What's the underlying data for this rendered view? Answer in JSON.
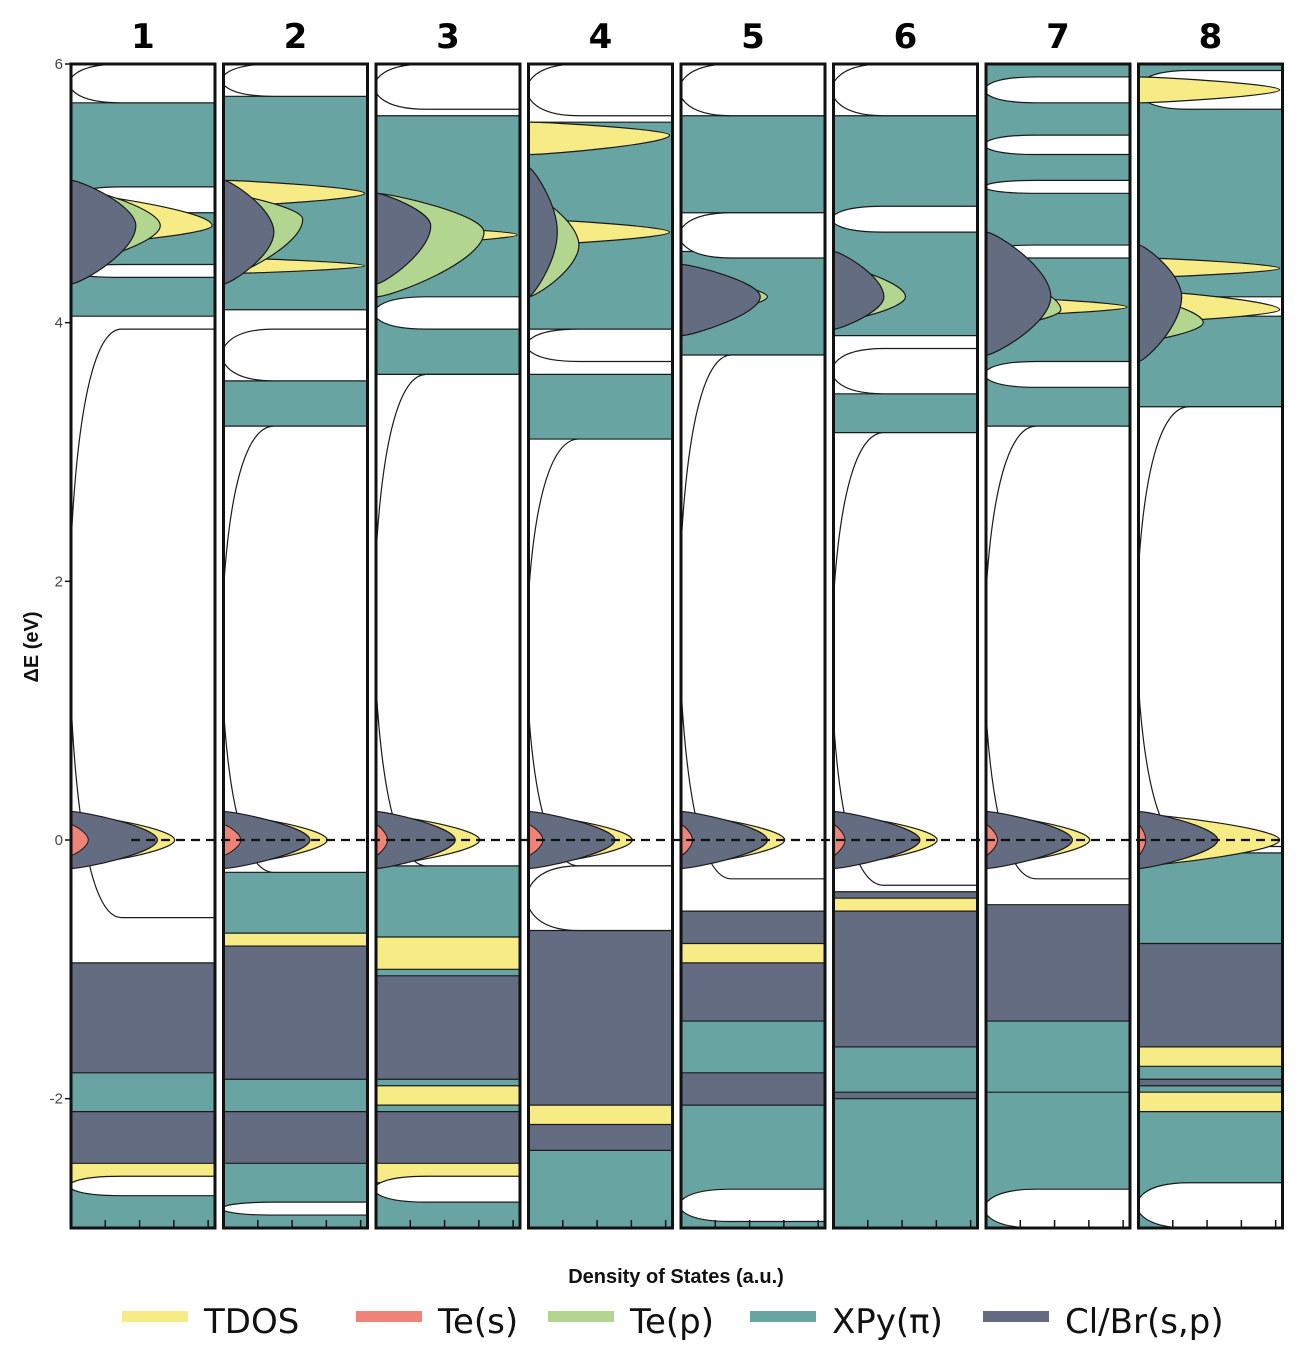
{
  "colors": {
    "tdos": "#f7eb85",
    "te_s": "#ef8377",
    "te_p": "#b2d690",
    "xpy_pi": "#68a4a2",
    "clbr_sp": "#636c80",
    "frame": "#111111"
  },
  "chart_data": {
    "type": "area",
    "xlabel": "Density of States (a.u.)",
    "ylabel": "ΔE (eV)",
    "ylim": [
      -3.0,
      6.0
    ],
    "yticks": [
      -2,
      0,
      2,
      4,
      6
    ],
    "ytick_labels": [
      "-2",
      "0",
      "2",
      "4",
      "6"
    ],
    "reference_line_y": 0,
    "legend": [
      {
        "label": "TDOS",
        "color_key": "tdos"
      },
      {
        "label": "Te(s)",
        "color_key": "te_s"
      },
      {
        "label": "Te(p)",
        "color_key": "te_p"
      },
      {
        "label": "XPy(π)",
        "color_key": "xpy_pi"
      },
      {
        "label": "Cl/Br(s,p)",
        "color_key": "clbr_sp"
      }
    ],
    "panels": [
      {
        "label": "1",
        "homo_peak": {
          "y": 0,
          "te_s_width": 0.12,
          "clbr_width": 0.6,
          "tdos_width": 0.72
        },
        "bands": [
          {
            "component": "xpy_pi",
            "y0": 4.05,
            "y1": 5.7
          },
          {
            "component": "clbr_sp",
            "y0": 4.3,
            "y1": 5.1,
            "peak": 4.75,
            "width": 0.45
          },
          {
            "component": "te_p",
            "y0": 4.45,
            "y1": 5.05,
            "peak": 4.75,
            "width": 0.62
          },
          {
            "component": "tdos",
            "y0": 4.6,
            "y1": 5.0,
            "peak": 4.75,
            "width": 0.98
          },
          {
            "component": "clbr_sp",
            "y0": -3.0,
            "y1": -0.95
          },
          {
            "component": "xpy_pi",
            "y0": -3.0,
            "y1": -2.6
          },
          {
            "component": "xpy_pi",
            "y0": -2.1,
            "y1": -1.8
          },
          {
            "component": "tdos",
            "y0": -2.65,
            "y1": -2.5
          }
        ],
        "gaps": [
          {
            "y0": 5.7,
            "y1": 6.0
          },
          {
            "y0": 4.85,
            "y1": 5.05
          },
          {
            "y0": 4.35,
            "y1": 4.45
          },
          {
            "y0": -0.6,
            "y1": 3.95
          },
          {
            "y0": -2.75,
            "y1": -2.6
          }
        ]
      },
      {
        "label": "2",
        "homo_peak": {
          "y": 0,
          "te_s_width": 0.12,
          "clbr_width": 0.6,
          "tdos_width": 0.72
        },
        "bands": [
          {
            "component": "xpy_pi",
            "y0": 4.1,
            "y1": 5.75
          },
          {
            "component": "xpy_pi",
            "y0": 3.2,
            "y1": 3.55
          },
          {
            "component": "clbr_sp",
            "y0": 4.3,
            "y1": 5.1,
            "peak": 4.7,
            "width": 0.35
          },
          {
            "component": "te_p",
            "y0": 4.35,
            "y1": 5.0,
            "peak": 4.8,
            "width": 0.55
          },
          {
            "component": "tdos",
            "y0": 4.9,
            "y1": 5.1,
            "peak": 5.0,
            "width": 0.98
          },
          {
            "component": "tdos",
            "y0": 4.38,
            "y1": 4.5,
            "peak": 4.44,
            "width": 0.98
          },
          {
            "component": "xpy_pi",
            "y0": -0.85,
            "y1": -0.25
          },
          {
            "component": "clbr_sp",
            "y0": -3.0,
            "y1": -0.8
          },
          {
            "component": "xpy_pi",
            "y0": -3.0,
            "y1": -2.5
          },
          {
            "component": "xpy_pi",
            "y0": -2.1,
            "y1": -1.85
          },
          {
            "component": "tdos",
            "y0": -0.82,
            "y1": -0.72
          }
        ],
        "gaps": [
          {
            "y0": 5.75,
            "y1": 6.0
          },
          {
            "y0": 3.55,
            "y1": 3.95
          },
          {
            "y0": -0.25,
            "y1": 3.2
          },
          {
            "y0": -2.9,
            "y1": -2.8
          }
        ]
      },
      {
        "label": "3",
        "homo_peak": {
          "y": 0,
          "te_s_width": 0.08,
          "clbr_width": 0.55,
          "tdos_width": 0.72
        },
        "bands": [
          {
            "component": "xpy_pi",
            "y0": 3.6,
            "y1": 5.6
          },
          {
            "component": "clbr_sp",
            "y0": 4.3,
            "y1": 5.0,
            "peak": 4.75,
            "width": 0.38
          },
          {
            "component": "te_p",
            "y0": 4.2,
            "y1": 5.0,
            "peak": 4.7,
            "width": 0.75
          },
          {
            "component": "tdos",
            "y0": 4.6,
            "y1": 4.75,
            "peak": 4.68,
            "width": 0.98
          },
          {
            "component": "xpy_pi",
            "y0": -1.1,
            "y1": -0.2
          },
          {
            "component": "clbr_sp",
            "y0": -3.0,
            "y1": -1.05
          },
          {
            "component": "xpy_pi",
            "y0": -3.0,
            "y1": -2.6
          },
          {
            "component": "xpy_pi",
            "y0": -2.1,
            "y1": -1.85
          },
          {
            "component": "tdos",
            "y0": -1.0,
            "y1": -0.75
          },
          {
            "component": "tdos",
            "y0": -2.05,
            "y1": -1.9
          },
          {
            "component": "tdos",
            "y0": -2.65,
            "y1": -2.5
          }
        ],
        "gaps": [
          {
            "y0": 5.65,
            "y1": 6.0
          },
          {
            "y0": 3.95,
            "y1": 4.2
          },
          {
            "y0": -0.2,
            "y1": 3.6
          },
          {
            "y0": -2.8,
            "y1": -2.6
          }
        ]
      },
      {
        "label": "4",
        "homo_peak": {
          "y": 0,
          "te_s_width": 0.1,
          "clbr_width": 0.6,
          "tdos_width": 0.72
        },
        "bands": [
          {
            "component": "xpy_pi",
            "y0": 3.1,
            "y1": 3.6
          },
          {
            "component": "xpy_pi",
            "y0": 3.95,
            "y1": 5.55
          },
          {
            "component": "clbr_sp",
            "y0": 4.2,
            "y1": 5.2,
            "peak": 4.7,
            "width": 0.2
          },
          {
            "component": "te_p",
            "y0": 4.2,
            "y1": 5.0,
            "peak": 4.6,
            "width": 0.35
          },
          {
            "component": "tdos",
            "y0": 4.6,
            "y1": 4.8,
            "peak": 4.7,
            "width": 0.98
          },
          {
            "component": "tdos",
            "y0": 5.3,
            "y1": 5.55,
            "peak": 5.45,
            "width": 0.98
          },
          {
            "component": "xpy_pi",
            "y0": -1.05,
            "y1": -0.75
          },
          {
            "component": "clbr_sp",
            "y0": -3.0,
            "y1": -0.7
          },
          {
            "component": "xpy_pi",
            "y0": -3.0,
            "y1": -2.4
          },
          {
            "component": "tdos",
            "y0": -2.2,
            "y1": -2.05
          }
        ],
        "gaps": [
          {
            "y0": 5.6,
            "y1": 6.0
          },
          {
            "y0": 3.7,
            "y1": 3.95
          },
          {
            "y0": -0.2,
            "y1": 3.1
          },
          {
            "y0": -0.7,
            "y1": -0.2
          }
        ]
      },
      {
        "label": "5",
        "homo_peak": {
          "y": 0,
          "te_s_width": 0.08,
          "clbr_width": 0.6,
          "tdos_width": 0.72
        },
        "bands": [
          {
            "component": "xpy_pi",
            "y0": 3.75,
            "y1": 4.55
          },
          {
            "component": "xpy_pi",
            "y0": 4.85,
            "y1": 5.6
          },
          {
            "component": "clbr_sp",
            "y0": 3.9,
            "y1": 4.45,
            "peak": 4.2,
            "width": 0.55
          },
          {
            "component": "te_p",
            "y0": 4.05,
            "y1": 4.35,
            "peak": 4.2,
            "width": 0.6
          },
          {
            "component": "clbr_sp",
            "y0": -3.0,
            "y1": -0.55
          },
          {
            "component": "xpy_pi",
            "y0": -3.0,
            "y1": -2.05
          },
          {
            "component": "xpy_pi",
            "y0": -1.8,
            "y1": -1.4
          },
          {
            "component": "tdos",
            "y0": -0.95,
            "y1": -0.8
          }
        ],
        "gaps": [
          {
            "y0": 5.6,
            "y1": 6.0
          },
          {
            "y0": 4.5,
            "y1": 4.85
          },
          {
            "y0": -0.3,
            "y1": 3.75
          },
          {
            "y0": -2.95,
            "y1": -2.7
          }
        ]
      },
      {
        "label": "6",
        "homo_peak": {
          "y": 0,
          "te_s_width": 0.08,
          "clbr_width": 0.6,
          "tdos_width": 0.72
        },
        "bands": [
          {
            "component": "xpy_pi",
            "y0": 3.9,
            "y1": 5.6
          },
          {
            "component": "xpy_pi",
            "y0": 3.15,
            "y1": 3.45
          },
          {
            "component": "clbr_sp",
            "y0": 3.95,
            "y1": 4.55,
            "peak": 4.2,
            "width": 0.35
          },
          {
            "component": "te_p",
            "y0": 4.0,
            "y1": 4.45,
            "peak": 4.2,
            "width": 0.5
          },
          {
            "component": "clbr_sp",
            "y0": -3.0,
            "y1": -0.4
          },
          {
            "component": "xpy_pi",
            "y0": -3.0,
            "y1": -2.0
          },
          {
            "component": "xpy_pi",
            "y0": -1.95,
            "y1": -1.6
          },
          {
            "component": "tdos",
            "y0": -0.55,
            "y1": -0.45
          }
        ],
        "gaps": [
          {
            "y0": 5.6,
            "y1": 6.0
          },
          {
            "y0": 4.7,
            "y1": 4.9
          },
          {
            "y0": 3.45,
            "y1": 3.8
          },
          {
            "y0": -0.35,
            "y1": 3.15
          }
        ]
      },
      {
        "label": "7",
        "homo_peak": {
          "y": 0,
          "te_s_width": 0.08,
          "clbr_width": 0.6,
          "tdos_width": 0.72
        },
        "bands": [
          {
            "component": "xpy_pi",
            "y0": 3.2,
            "y1": 6.0
          },
          {
            "component": "clbr_sp",
            "y0": 3.75,
            "y1": 4.7,
            "peak": 4.2,
            "width": 0.45
          },
          {
            "component": "te_p",
            "y0": 3.95,
            "y1": 4.4,
            "peak": 4.1,
            "width": 0.52
          },
          {
            "component": "tdos",
            "y0": 4.05,
            "y1": 4.2,
            "peak": 4.12,
            "width": 0.98
          },
          {
            "component": "clbr_sp",
            "y0": -3.0,
            "y1": -0.5
          },
          {
            "component": "xpy_pi",
            "y0": -3.0,
            "y1": -1.9
          },
          {
            "component": "xpy_pi",
            "y0": -1.95,
            "y1": -1.4
          }
        ],
        "gaps": [
          {
            "y0": 5.7,
            "y1": 5.9
          },
          {
            "y0": 5.3,
            "y1": 5.45
          },
          {
            "y0": 5.0,
            "y1": 5.1
          },
          {
            "y0": 4.5,
            "y1": 4.6
          },
          {
            "y0": 3.5,
            "y1": 3.7
          },
          {
            "y0": -0.3,
            "y1": 3.2
          },
          {
            "y0": -3.0,
            "y1": -2.7
          }
        ]
      },
      {
        "label": "8",
        "homo_peak": {
          "y": 0,
          "te_s_width": 0.05,
          "clbr_width": 0.55,
          "tdos_width": 0.98
        },
        "bands": [
          {
            "component": "xpy_pi",
            "y0": 3.35,
            "y1": 6.0
          },
          {
            "component": "clbr_sp",
            "y0": 3.7,
            "y1": 4.6,
            "peak": 4.2,
            "width": 0.3
          },
          {
            "component": "te_p",
            "y0": 3.85,
            "y1": 4.2,
            "peak": 4.0,
            "width": 0.45
          },
          {
            "component": "tdos",
            "y0": 4.0,
            "y1": 4.25,
            "peak": 4.1,
            "width": 0.98
          },
          {
            "component": "tdos",
            "y0": 4.35,
            "y1": 4.5,
            "peak": 4.42,
            "width": 0.98
          },
          {
            "component": "tdos",
            "y0": 5.7,
            "y1": 5.9,
            "peak": 5.8,
            "width": 0.98
          },
          {
            "component": "clbr_sp",
            "y0": -3.0,
            "y1": -0.1
          },
          {
            "component": "xpy_pi",
            "y0": -0.8,
            "y1": -0.1
          },
          {
            "component": "xpy_pi",
            "y0": -3.0,
            "y1": -1.9
          },
          {
            "component": "xpy_pi",
            "y0": -1.85,
            "y1": -1.6
          },
          {
            "component": "tdos",
            "y0": -1.75,
            "y1": -1.6
          },
          {
            "component": "tdos",
            "y0": -2.1,
            "y1": -1.95
          }
        ],
        "gaps": [
          {
            "y0": 5.65,
            "y1": 5.95
          },
          {
            "y0": 4.05,
            "y1": 4.2
          },
          {
            "y0": -0.05,
            "y1": 3.35
          },
          {
            "y0": -3.0,
            "y1": -2.65
          }
        ]
      }
    ]
  }
}
